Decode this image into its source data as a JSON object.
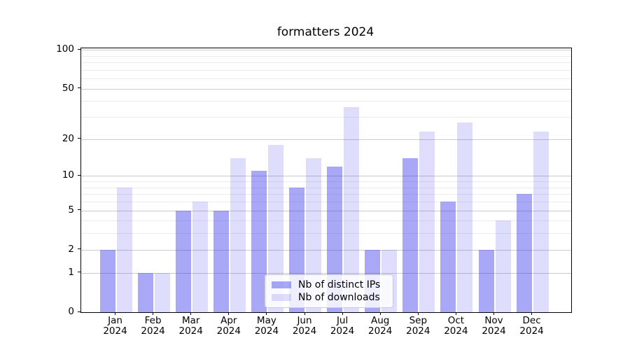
{
  "title": "formatters 2024",
  "legend": {
    "items": [
      {
        "label": "Nb of distinct IPs",
        "color": "rgba(47,47,236,0.42)"
      },
      {
        "label": "Nb of downloads",
        "color": "rgba(47,47,236,0.16)"
      }
    ]
  },
  "axes": {
    "axis_color": "#000000",
    "grid_major_color": "#cbcbcb",
    "grid_minor_color": "#ececec"
  },
  "chart_data": {
    "type": "bar",
    "title": "formatters 2024",
    "categories": [
      "Jan 2024",
      "Feb 2024",
      "Mar 2024",
      "Apr 2024",
      "May 2024",
      "Jun 2024",
      "Jul 2024",
      "Aug 2024",
      "Sep 2024",
      "Oct 2024",
      "Nov 2024",
      "Dec 2024"
    ],
    "series": [
      {
        "name": "Nb of distinct IPs",
        "color": "rgba(47,47,236,0.42)",
        "values": [
          2,
          1,
          5,
          5,
          11,
          8,
          12,
          2,
          14,
          6,
          2,
          7
        ]
      },
      {
        "name": "Nb of downloads",
        "color": "rgba(47,47,236,0.16)",
        "values": [
          8,
          1,
          6,
          14,
          18,
          14,
          36,
          2,
          23,
          27,
          4,
          23
        ]
      }
    ],
    "xlabel": "",
    "ylabel": "",
    "yscale": "log1p",
    "ylim": [
      0,
      103
    ],
    "yticks": [
      0,
      1,
      2,
      5,
      10,
      20,
      50,
      100
    ],
    "yticks_minor": [
      3,
      4,
      6,
      7,
      8,
      9,
      30,
      40,
      60,
      70,
      80,
      90
    ],
    "grid": "both",
    "legend_position": "lower-center"
  }
}
